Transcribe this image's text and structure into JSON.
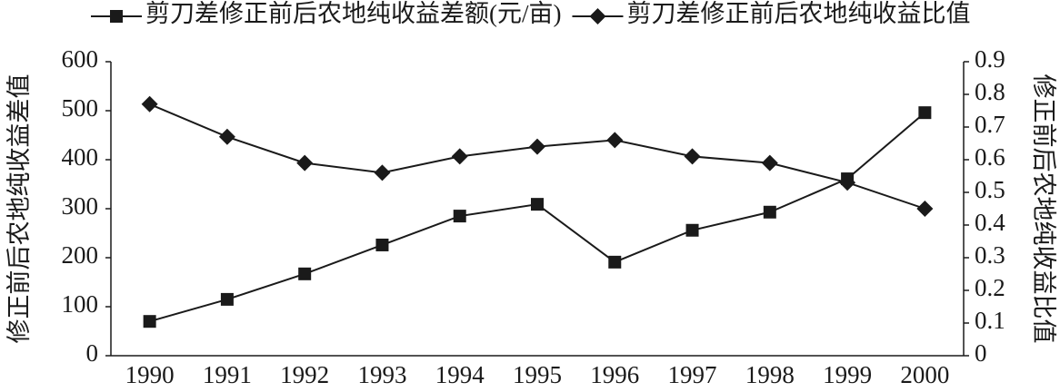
{
  "chart_data": {
    "type": "line",
    "categories": [
      "1990",
      "1991",
      "1992",
      "1993",
      "1994",
      "1995",
      "1996",
      "1997",
      "1998",
      "1999",
      "2000"
    ],
    "ylabel": "修正前后农地纯收益差值",
    "y2label": "修正前后农地纯收益比值",
    "ylim": [
      0,
      600
    ],
    "yticks": [
      0,
      100,
      200,
      300,
      400,
      500,
      600
    ],
    "y2lim": [
      0,
      0.9
    ],
    "y2ticks": [
      0,
      0.1,
      0.2,
      0.3,
      0.4,
      0.5,
      0.6,
      0.7,
      0.8,
      0.9
    ],
    "legend": "top",
    "series": [
      {
        "name": "剪刀差修正前后农地纯收益差额(元/亩)",
        "color": "#1a1a1a",
        "marker": "square",
        "values": [
          70,
          115,
          167,
          226,
          285,
          309,
          191,
          256,
          293,
          361,
          496
        ]
      },
      {
        "name": "剪刀差修正前后农地纯收益比值",
        "color": "#1a1a1a",
        "marker": "diamond",
        "axis": "y2",
        "values": [
          0.77,
          0.67,
          0.59,
          0.56,
          0.61,
          0.64,
          0.66,
          0.61,
          0.59,
          0.53,
          0.45
        ]
      }
    ]
  }
}
